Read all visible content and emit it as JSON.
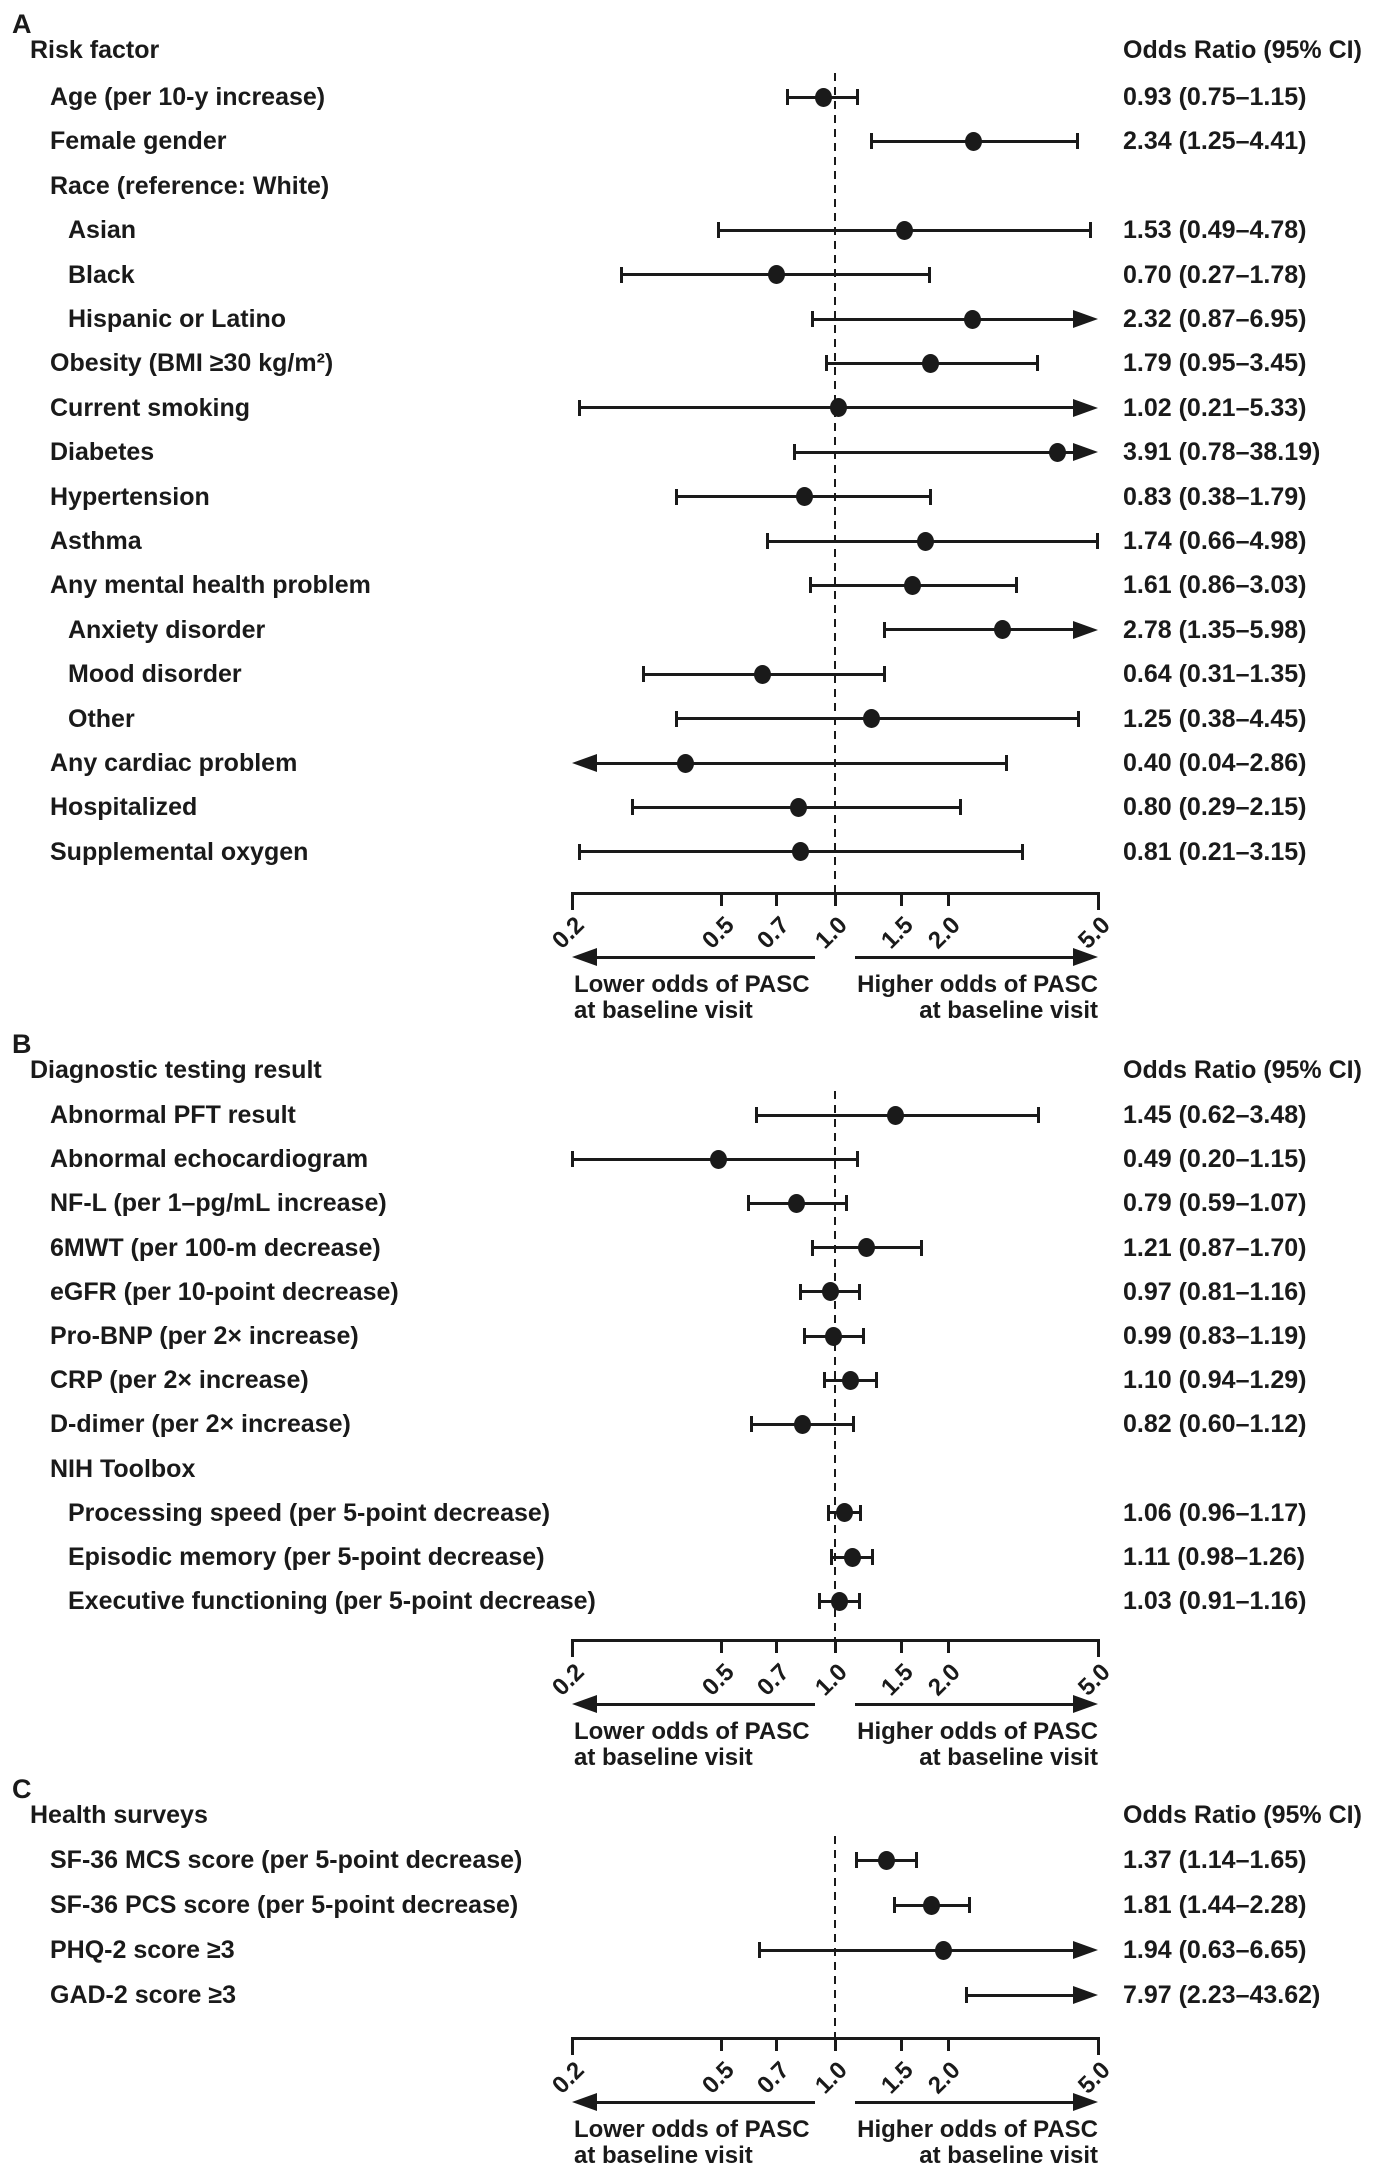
{
  "chart_data": {
    "type": "forest",
    "x_scale": "log",
    "xlim": [
      0.2,
      5.0
    ],
    "x_ticks": [
      0.2,
      0.5,
      0.7,
      1.0,
      1.5,
      2.0,
      5.0
    ],
    "x_tick_labels": [
      "0.2",
      "0.5",
      "0.7",
      "1.0",
      "1.5",
      "2.0",
      "5.0"
    ],
    "reference_line": 1.0,
    "value_column_header": "Odds Ratio (95% CI)",
    "x_arrow_left": [
      "Lower odds of PASC",
      "at baseline visit"
    ],
    "x_arrow_right": [
      "Higher odds of PASC",
      "at baseline visit"
    ],
    "panels": [
      {
        "letter": "A",
        "title": "Risk factor",
        "rows": [
          {
            "label": "Age (per 10-y increase)",
            "indent": 1,
            "or": 0.93,
            "ci_low": 0.75,
            "ci_high": 1.15,
            "text": "0.93 (0.75–1.15)"
          },
          {
            "label": "Female gender",
            "indent": 1,
            "or": 2.34,
            "ci_low": 1.25,
            "ci_high": 4.41,
            "text": "2.34 (1.25–4.41)"
          },
          {
            "label": "Race (reference: White)",
            "indent": 1
          },
          {
            "label": "Asian",
            "indent": 2,
            "or": 1.53,
            "ci_low": 0.49,
            "ci_high": 4.78,
            "text": "1.53 (0.49–4.78)"
          },
          {
            "label": "Black",
            "indent": 2,
            "or": 0.7,
            "ci_low": 0.27,
            "ci_high": 1.78,
            "text": "0.70 (0.27–1.78)"
          },
          {
            "label": "Hispanic or Latino",
            "indent": 2,
            "or": 2.32,
            "ci_low": 0.87,
            "ci_high": 6.95,
            "text": "2.32 (0.87–6.95)"
          },
          {
            "label": "Obesity (BMI ≥30 kg/m²)",
            "indent": 1,
            "or": 1.79,
            "ci_low": 0.95,
            "ci_high": 3.45,
            "text": "1.79 (0.95–3.45)"
          },
          {
            "label": "Current smoking",
            "indent": 1,
            "or": 1.02,
            "ci_low": 0.21,
            "ci_high": 5.33,
            "text": "1.02 (0.21–5.33)"
          },
          {
            "label": "Diabetes",
            "indent": 1,
            "or": 3.91,
            "ci_low": 0.78,
            "ci_high": 38.19,
            "text": "3.91 (0.78–38.19)"
          },
          {
            "label": "Hypertension",
            "indent": 1,
            "or": 0.83,
            "ci_low": 0.38,
            "ci_high": 1.79,
            "text": "0.83 (0.38–1.79)"
          },
          {
            "label": "Asthma",
            "indent": 1,
            "or": 1.74,
            "ci_low": 0.66,
            "ci_high": 4.98,
            "text": "1.74 (0.66–4.98)"
          },
          {
            "label": "Any mental health problem",
            "indent": 1,
            "or": 1.61,
            "ci_low": 0.86,
            "ci_high": 3.03,
            "text": "1.61 (0.86–3.03)"
          },
          {
            "label": "Anxiety disorder",
            "indent": 2,
            "or": 2.78,
            "ci_low": 1.35,
            "ci_high": 5.98,
            "text": "2.78 (1.35–5.98)"
          },
          {
            "label": "Mood disorder",
            "indent": 2,
            "or": 0.64,
            "ci_low": 0.31,
            "ci_high": 1.35,
            "text": "0.64 (0.31–1.35)"
          },
          {
            "label": "Other",
            "indent": 2,
            "or": 1.25,
            "ci_low": 0.38,
            "ci_high": 4.45,
            "text": "1.25 (0.38–4.45)"
          },
          {
            "label": "Any cardiac problem",
            "indent": 1,
            "or": 0.4,
            "ci_low": 0.04,
            "ci_high": 2.86,
            "text": "0.40 (0.04–2.86)"
          },
          {
            "label": "Hospitalized",
            "indent": 1,
            "or": 0.8,
            "ci_low": 0.29,
            "ci_high": 2.15,
            "text": "0.80 (0.29–2.15)"
          },
          {
            "label": "Supplemental oxygen",
            "indent": 1,
            "or": 0.81,
            "ci_low": 0.21,
            "ci_high": 3.15,
            "text": "0.81 (0.21–3.15)"
          }
        ]
      },
      {
        "letter": "B",
        "title": "Diagnostic testing result",
        "rows": [
          {
            "label": "Abnormal PFT result",
            "indent": 1,
            "or": 1.45,
            "ci_low": 0.62,
            "ci_high": 3.48,
            "text": "1.45 (0.62–3.48)"
          },
          {
            "label": "Abnormal echocardiogram",
            "indent": 1,
            "or": 0.49,
            "ci_low": 0.2,
            "ci_high": 1.15,
            "text": "0.49 (0.20–1.15)"
          },
          {
            "label": "NF-L (per 1–pg/mL increase)",
            "indent": 1,
            "or": 0.79,
            "ci_low": 0.59,
            "ci_high": 1.07,
            "text": "0.79 (0.59–1.07)"
          },
          {
            "label": "6MWT (per 100-m decrease)",
            "indent": 1,
            "or": 1.21,
            "ci_low": 0.87,
            "ci_high": 1.7,
            "text": "1.21 (0.87–1.70)"
          },
          {
            "label": "eGFR (per 10-point decrease)",
            "indent": 1,
            "or": 0.97,
            "ci_low": 0.81,
            "ci_high": 1.16,
            "text": "0.97 (0.81–1.16)"
          },
          {
            "label": "Pro-BNP (per 2× increase)",
            "indent": 1,
            "or": 0.99,
            "ci_low": 0.83,
            "ci_high": 1.19,
            "text": "0.99 (0.83–1.19)"
          },
          {
            "label": "CRP (per 2× increase)",
            "indent": 1,
            "or": 1.1,
            "ci_low": 0.94,
            "ci_high": 1.29,
            "text": "1.10 (0.94–1.29)"
          },
          {
            "label": "D-dimer (per 2× increase)",
            "indent": 1,
            "or": 0.82,
            "ci_low": 0.6,
            "ci_high": 1.12,
            "text": "0.82 (0.60–1.12)"
          },
          {
            "label": "NIH Toolbox",
            "indent": 1
          },
          {
            "label": "Processing speed (per 5-point decrease)",
            "indent": 2,
            "or": 1.06,
            "ci_low": 0.96,
            "ci_high": 1.17,
            "text": "1.06 (0.96–1.17)"
          },
          {
            "label": "Episodic memory (per 5-point decrease)",
            "indent": 2,
            "or": 1.11,
            "ci_low": 0.98,
            "ci_high": 1.26,
            "text": "1.11 (0.98–1.26)"
          },
          {
            "label": "Executive functioning (per 5-point decrease)",
            "indent": 2,
            "or": 1.03,
            "ci_low": 0.91,
            "ci_high": 1.16,
            "text": "1.03 (0.91–1.16)"
          }
        ]
      },
      {
        "letter": "C",
        "title": "Health surveys",
        "rows": [
          {
            "label": "SF-36 MCS score (per 5-point decrease)",
            "indent": 1,
            "or": 1.37,
            "ci_low": 1.14,
            "ci_high": 1.65,
            "text": "1.37 (1.14–1.65)"
          },
          {
            "label": "SF-36 PCS score (per 5-point decrease)",
            "indent": 1,
            "or": 1.81,
            "ci_low": 1.44,
            "ci_high": 2.28,
            "text": "1.81 (1.44–2.28)"
          },
          {
            "label": "PHQ-2 score ≥3",
            "indent": 1,
            "or": 1.94,
            "ci_low": 0.63,
            "ci_high": 6.65,
            "text": "1.94 (0.63–6.65)"
          },
          {
            "label": "GAD-2 score ≥3",
            "indent": 1,
            "or": 7.97,
            "ci_low": 2.23,
            "ci_high": 43.62,
            "text": "7.97 (2.23–43.62)"
          }
        ]
      }
    ]
  }
}
